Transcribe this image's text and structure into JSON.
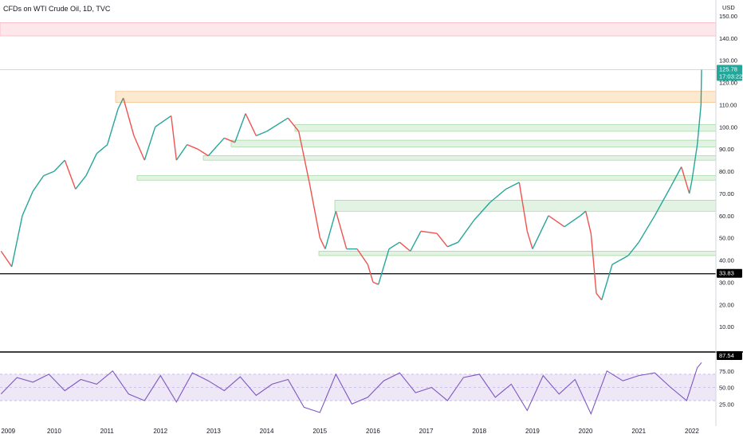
{
  "header": {
    "title": "CFDs on WTI Crude Oil, 1D, TVC",
    "currency": "USD"
  },
  "colors": {
    "up": "#26a69a",
    "down": "#ef5350",
    "rsi": "#7e57c2",
    "rsi_band": "#ede7f6",
    "zone_red": "#fde7ea",
    "zone_orange": "#fde9cf",
    "zone_green": "#e3f3e3",
    "price_badge": "#26a69a",
    "level_line": "#000000"
  },
  "chart_data": [
    {
      "type": "line",
      "title": "CFDs on WTI Crude Oil, 1D, TVC",
      "xlabel": "",
      "ylabel": "USD",
      "x_ticks": [
        "2009",
        "2010",
        "2011",
        "2012",
        "2013",
        "2014",
        "2015",
        "2016",
        "2017",
        "2018",
        "2019",
        "2020",
        "2021",
        "2022"
      ],
      "y_ticks": [
        "150.00",
        "140.00",
        "130.00",
        "120.00",
        "110.00",
        "100.00",
        "90.00",
        "80.00",
        "70.00",
        "60.00",
        "50.00",
        "40.00",
        "30.00",
        "20.00",
        "10.00"
      ],
      "ylim": [
        0,
        150
      ],
      "x": [
        2009.0,
        2009.2,
        2009.4,
        2009.6,
        2009.8,
        2010.0,
        2010.2,
        2010.4,
        2010.6,
        2010.8,
        2011.0,
        2011.2,
        2011.3,
        2011.5,
        2011.7,
        2011.9,
        2012.2,
        2012.3,
        2012.5,
        2012.7,
        2012.9,
        2013.2,
        2013.4,
        2013.6,
        2013.8,
        2014.0,
        2014.4,
        2014.6,
        2014.8,
        2015.0,
        2015.1,
        2015.3,
        2015.5,
        2015.7,
        2015.9,
        2016.0,
        2016.1,
        2016.3,
        2016.5,
        2016.7,
        2016.9,
        2017.2,
        2017.4,
        2017.6,
        2017.9,
        2018.2,
        2018.5,
        2018.75,
        2018.9,
        2019.0,
        2019.3,
        2019.6,
        2019.9,
        2020.0,
        2020.1,
        2020.2,
        2020.3,
        2020.5,
        2020.8,
        2021.0,
        2021.3,
        2021.6,
        2021.8,
        2021.95,
        2022.0,
        2022.1,
        2022.17,
        2022.18
      ],
      "series": [
        {
          "values": [
            44,
            37,
            60,
            71,
            78,
            80,
            85,
            72,
            78,
            88,
            92,
            108,
            113,
            96,
            85,
            100,
            105,
            85,
            92,
            90,
            87,
            95,
            93,
            106,
            96,
            98,
            104,
            98,
            75,
            50,
            45,
            62,
            45,
            45,
            38,
            30,
            29,
            45,
            48,
            44,
            53,
            52,
            46,
            48,
            58,
            66,
            72,
            75,
            53,
            45,
            60,
            55,
            60,
            62,
            52,
            25,
            22,
            38,
            42,
            48,
            60,
            73,
            82,
            70,
            76,
            92,
            110,
            125.78
          ]
        }
      ],
      "last_price": "125.78",
      "last_price_time": "17:03:22",
      "horizontal_level": "33.83",
      "zones": [
        {
          "low": 141,
          "high": 147,
          "color": "red"
        },
        {
          "low": 111,
          "high": 116,
          "color": "orange"
        },
        {
          "low": 98,
          "high": 101,
          "color": "green"
        },
        {
          "low": 91,
          "high": 94,
          "color": "green"
        },
        {
          "low": 85,
          "high": 87,
          "color": "green"
        },
        {
          "low": 76,
          "high": 78,
          "color": "green"
        },
        {
          "low": 62,
          "high": 67,
          "color": "green"
        },
        {
          "low": 42,
          "high": 44,
          "color": "green"
        }
      ]
    },
    {
      "type": "line",
      "title": "",
      "xlabel": "",
      "ylabel": "",
      "y_ticks": [
        "75.00",
        "50.00",
        "25.00"
      ],
      "ylim": [
        0,
        100
      ],
      "band": [
        30,
        70
      ],
      "last_value": "87.54",
      "x": [
        2009.0,
        2009.3,
        2009.6,
        2009.9,
        2010.2,
        2010.5,
        2010.8,
        2011.1,
        2011.4,
        2011.7,
        2012.0,
        2012.3,
        2012.6,
        2012.9,
        2013.2,
        2013.5,
        2013.8,
        2014.1,
        2014.4,
        2014.7,
        2015.0,
        2015.3,
        2015.6,
        2015.9,
        2016.2,
        2016.5,
        2016.8,
        2017.1,
        2017.4,
        2017.7,
        2018.0,
        2018.3,
        2018.6,
        2018.9,
        2019.2,
        2019.5,
        2019.8,
        2020.1,
        2020.4,
        2020.7,
        2021.0,
        2021.3,
        2021.6,
        2021.9,
        2022.1,
        2022.18
      ],
      "series": [
        {
          "values": [
            40,
            65,
            58,
            70,
            45,
            62,
            55,
            75,
            40,
            30,
            68,
            28,
            72,
            60,
            45,
            66,
            38,
            55,
            62,
            20,
            12,
            70,
            25,
            35,
            60,
            72,
            42,
            50,
            30,
            65,
            70,
            35,
            55,
            15,
            68,
            40,
            62,
            10,
            75,
            60,
            68,
            72,
            50,
            30,
            80,
            87.54
          ]
        }
      ]
    }
  ]
}
